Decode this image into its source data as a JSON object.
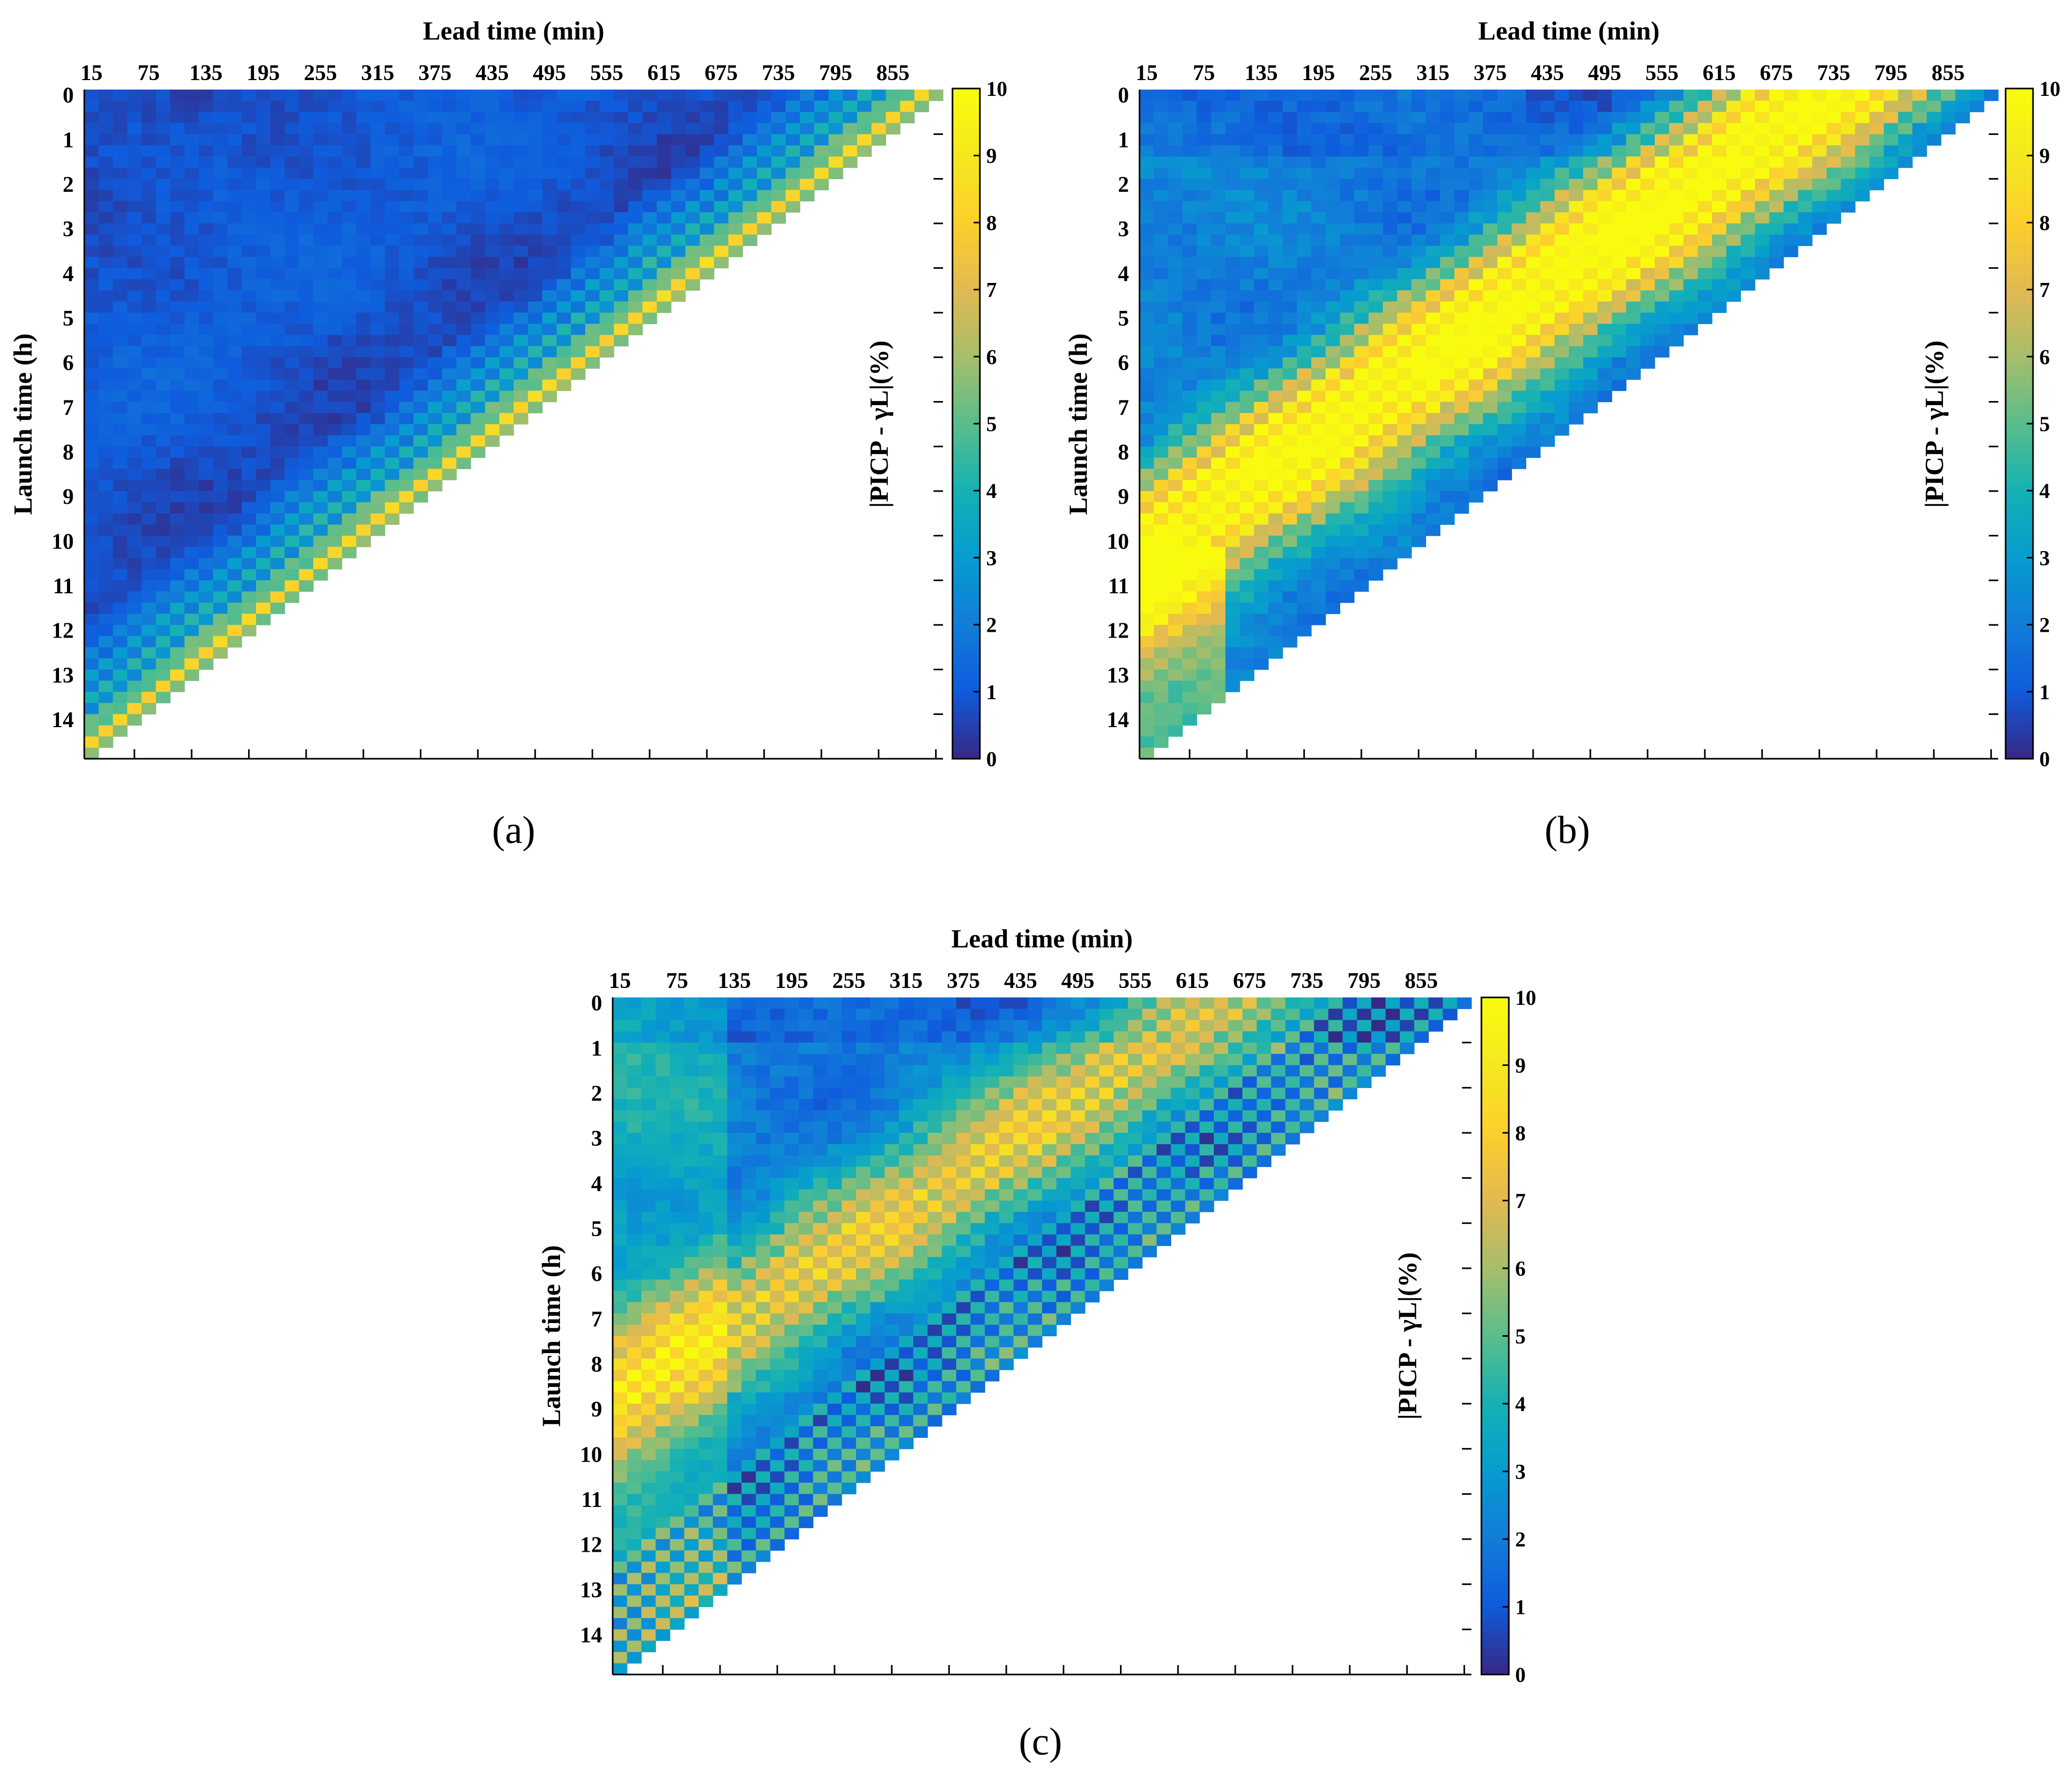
{
  "chart_data": [
    {
      "type": "heatmap",
      "panel_label": "(a)",
      "pattern": "a",
      "xlabel": "Lead time (min)",
      "ylabel": "Launch time (h)",
      "colorbar_label": "|PICP - γL|(%)",
      "x_tick_labels": [
        "15",
        "75",
        "135",
        "195",
        "255",
        "315",
        "375",
        "435",
        "495",
        "555",
        "615",
        "675",
        "735",
        "795",
        "855"
      ],
      "y_tick_labels": [
        "0",
        "1",
        "2",
        "3",
        "4",
        "5",
        "6",
        "7",
        "8",
        "9",
        "10",
        "11",
        "12",
        "13",
        "14"
      ],
      "colorbar_ticks": [
        "0",
        "1",
        "2",
        "3",
        "4",
        "5",
        "6",
        "7",
        "8",
        "9",
        "10"
      ],
      "zlim": [
        0,
        10
      ],
      "colormap": "parula",
      "grid": false
    },
    {
      "type": "heatmap",
      "panel_label": "(b)",
      "pattern": "b",
      "xlabel": "Lead time (min)",
      "ylabel": "Launch time (h)",
      "colorbar_label": "|PICP - γL|(%)",
      "x_tick_labels": [
        "15",
        "75",
        "135",
        "195",
        "255",
        "315",
        "375",
        "435",
        "495",
        "555",
        "615",
        "675",
        "735",
        "795",
        "855"
      ],
      "y_tick_labels": [
        "0",
        "1",
        "2",
        "3",
        "4",
        "5",
        "6",
        "7",
        "8",
        "9",
        "10",
        "11",
        "12",
        "13",
        "14"
      ],
      "colorbar_ticks": [
        "0",
        "1",
        "2",
        "3",
        "4",
        "5",
        "6",
        "7",
        "8",
        "9",
        "10"
      ],
      "zlim": [
        0,
        10
      ],
      "colormap": "parula",
      "grid": false
    },
    {
      "type": "heatmap",
      "panel_label": "(c)",
      "pattern": "c",
      "xlabel": "Lead time (min)",
      "ylabel": "Launch time (h)",
      "colorbar_label": "|PICP - γL|(%)",
      "x_tick_labels": [
        "15",
        "75",
        "135",
        "195",
        "255",
        "315",
        "375",
        "435",
        "495",
        "555",
        "615",
        "675",
        "735",
        "795",
        "855"
      ],
      "y_tick_labels": [
        "0",
        "1",
        "2",
        "3",
        "4",
        "5",
        "6",
        "7",
        "8",
        "9",
        "10",
        "11",
        "12",
        "13",
        "14"
      ],
      "colorbar_ticks": [
        "0",
        "1",
        "2",
        "3",
        "4",
        "5",
        "6",
        "7",
        "8",
        "9",
        "10"
      ],
      "zlim": [
        0,
        10
      ],
      "colormap": "parula",
      "grid": false
    }
  ]
}
